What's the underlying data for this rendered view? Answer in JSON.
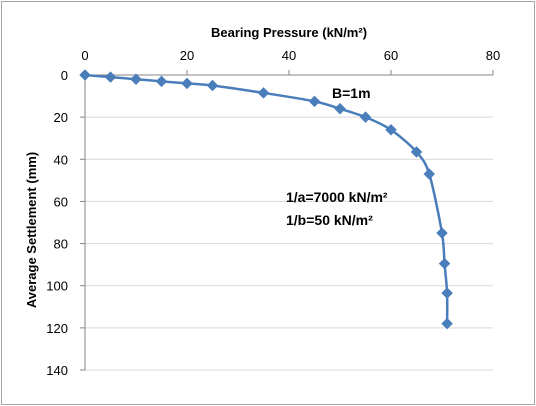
{
  "chart_data": {
    "type": "scatter",
    "title": "",
    "xlabel": "Bearing Pressure (kN/m²)",
    "ylabel": "Average Settlement (mm)",
    "xlim": [
      0,
      80
    ],
    "ylim": [
      0,
      140
    ],
    "y_inverted": true,
    "x_axis_position": "top",
    "x_ticks": [
      "0",
      "20",
      "40",
      "60",
      "80"
    ],
    "y_ticks": [
      "0",
      "20",
      "40",
      "60",
      "80",
      "100",
      "120",
      "140"
    ],
    "grid": "horizontal major gridlines",
    "legend": "none",
    "line_color": "#4a7ebb",
    "marker": "diamond",
    "series": [
      {
        "x": [
          0,
          5,
          10,
          15,
          20,
          25,
          35,
          45,
          50,
          55,
          60,
          65,
          67.5,
          70,
          70.5,
          71,
          71
        ],
        "y": [
          0,
          1,
          2,
          3,
          4,
          5,
          8.5,
          12.5,
          16,
          20,
          26,
          36.5,
          47,
          75,
          89.5,
          103.5,
          118
        ]
      }
    ],
    "annotations": [
      "B=1m",
      "1/a=7000 kN/m²",
      "1/b=50 kN/m²"
    ]
  }
}
